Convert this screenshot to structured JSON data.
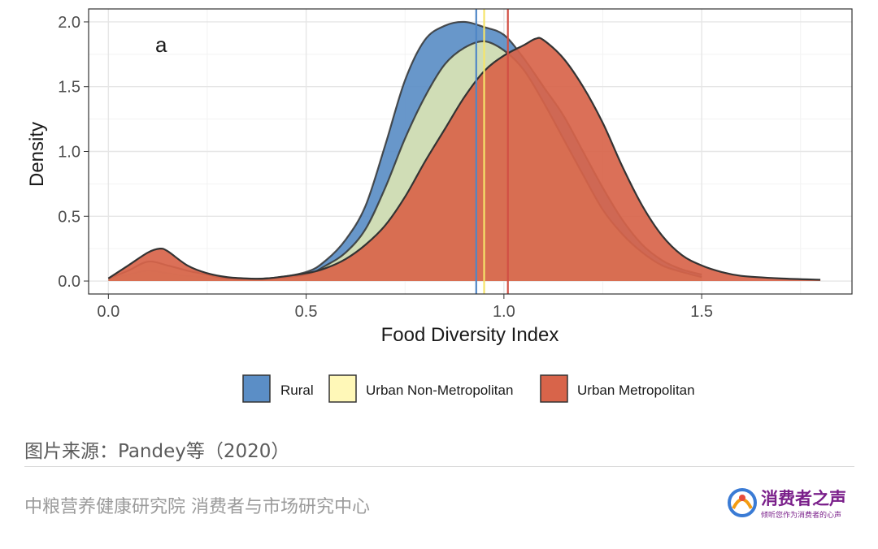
{
  "chart_data": {
    "type": "area",
    "panel_label": "a",
    "xlabel": "Food Diversity Index",
    "ylabel": "Density",
    "xlim": [
      -0.05,
      1.88
    ],
    "ylim": [
      -0.1,
      2.1
    ],
    "x_ticks": [
      "0.0",
      "0.5",
      "1.0",
      "1.5"
    ],
    "y_ticks": [
      "0.0",
      "0.5",
      "1.0",
      "1.5",
      "2.0"
    ],
    "grid": true,
    "legend_position": "bottom",
    "series": [
      {
        "name": "Rural",
        "color": "#5b8ec6",
        "mean": 0.93,
        "points": [
          [
            0.0,
            0.02
          ],
          [
            0.05,
            0.05
          ],
          [
            0.1,
            0.08
          ],
          [
            0.15,
            0.06
          ],
          [
            0.2,
            0.04
          ],
          [
            0.3,
            0.02
          ],
          [
            0.4,
            0.02
          ],
          [
            0.5,
            0.07
          ],
          [
            0.55,
            0.16
          ],
          [
            0.6,
            0.32
          ],
          [
            0.65,
            0.58
          ],
          [
            0.7,
            1.05
          ],
          [
            0.75,
            1.55
          ],
          [
            0.8,
            1.86
          ],
          [
            0.85,
            1.97
          ],
          [
            0.9,
            2.0
          ],
          [
            0.95,
            1.96
          ],
          [
            1.0,
            1.9
          ],
          [
            1.05,
            1.72
          ],
          [
            1.1,
            1.5
          ],
          [
            1.15,
            1.28
          ],
          [
            1.2,
            1.0
          ],
          [
            1.25,
            0.72
          ],
          [
            1.3,
            0.47
          ],
          [
            1.35,
            0.28
          ],
          [
            1.4,
            0.16
          ],
          [
            1.45,
            0.09
          ],
          [
            1.5,
            0.05
          ]
        ]
      },
      {
        "name": "Urban Non-Metropolitan",
        "color": "#d9e3b4",
        "mean": 0.95,
        "points": [
          [
            0.0,
            0.02
          ],
          [
            0.05,
            0.08
          ],
          [
            0.1,
            0.15
          ],
          [
            0.15,
            0.12
          ],
          [
            0.2,
            0.08
          ],
          [
            0.25,
            0.05
          ],
          [
            0.3,
            0.02
          ],
          [
            0.4,
            0.02
          ],
          [
            0.5,
            0.05
          ],
          [
            0.55,
            0.12
          ],
          [
            0.6,
            0.22
          ],
          [
            0.65,
            0.4
          ],
          [
            0.7,
            0.72
          ],
          [
            0.75,
            1.1
          ],
          [
            0.8,
            1.42
          ],
          [
            0.85,
            1.67
          ],
          [
            0.9,
            1.8
          ],
          [
            0.95,
            1.85
          ],
          [
            1.0,
            1.78
          ],
          [
            1.05,
            1.63
          ],
          [
            1.1,
            1.38
          ],
          [
            1.15,
            1.1
          ],
          [
            1.2,
            0.82
          ],
          [
            1.25,
            0.55
          ],
          [
            1.3,
            0.36
          ],
          [
            1.35,
            0.22
          ],
          [
            1.4,
            0.12
          ],
          [
            1.45,
            0.07
          ],
          [
            1.5,
            0.03
          ]
        ]
      },
      {
        "name": "Urban Metropolitan",
        "color": "#d8644a",
        "mean": 1.01,
        "points": [
          [
            0.0,
            0.02
          ],
          [
            0.05,
            0.12
          ],
          [
            0.1,
            0.22
          ],
          [
            0.13,
            0.25
          ],
          [
            0.15,
            0.23
          ],
          [
            0.2,
            0.12
          ],
          [
            0.25,
            0.06
          ],
          [
            0.3,
            0.03
          ],
          [
            0.35,
            0.02
          ],
          [
            0.4,
            0.02
          ],
          [
            0.5,
            0.06
          ],
          [
            0.55,
            0.1
          ],
          [
            0.6,
            0.17
          ],
          [
            0.65,
            0.28
          ],
          [
            0.7,
            0.43
          ],
          [
            0.75,
            0.65
          ],
          [
            0.8,
            0.92
          ],
          [
            0.85,
            1.17
          ],
          [
            0.9,
            1.42
          ],
          [
            0.95,
            1.62
          ],
          [
            1.0,
            1.74
          ],
          [
            1.05,
            1.82
          ],
          [
            1.08,
            1.87
          ],
          [
            1.1,
            1.86
          ],
          [
            1.15,
            1.72
          ],
          [
            1.2,
            1.5
          ],
          [
            1.25,
            1.22
          ],
          [
            1.3,
            0.88
          ],
          [
            1.35,
            0.58
          ],
          [
            1.4,
            0.35
          ],
          [
            1.45,
            0.2
          ],
          [
            1.5,
            0.12
          ],
          [
            1.55,
            0.07
          ],
          [
            1.6,
            0.04
          ],
          [
            1.7,
            0.02
          ],
          [
            1.8,
            0.01
          ]
        ]
      }
    ],
    "mean_line_colors": [
      "#4f86c6",
      "#f5e46a",
      "#d14f44"
    ]
  },
  "caption": "图片来源：Pandey等（2020）",
  "footer_org": "中粮营养健康研究院 消费者与市场研究中心",
  "brand": {
    "name": "消费者之声",
    "slogan": "倾听您作为消费者的心声"
  }
}
